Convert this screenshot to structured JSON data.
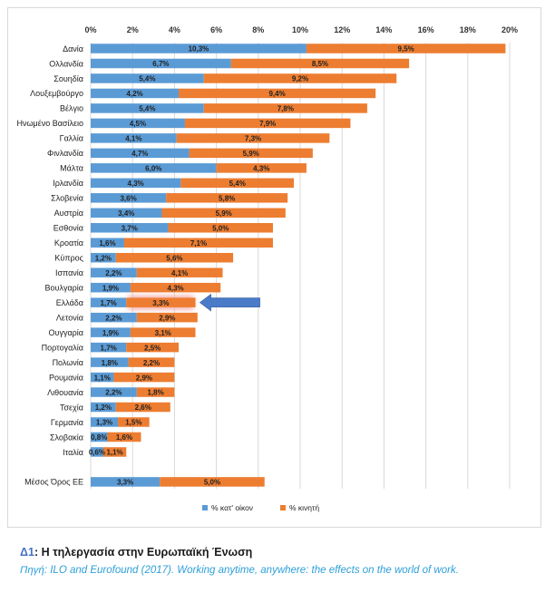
{
  "chart_data": {
    "type": "bar",
    "orientation": "horizontal",
    "stacked": true,
    "categories": [
      "Δανία",
      "Ολλανδία",
      "Σουηδία",
      "Λουξεμβούργο",
      "Βέλγιο",
      "Ηνωμένο Βασίλειο",
      "Γαλλία",
      "Φινλανδία",
      "Μάλτα",
      "Ιρλανδία",
      "Σλοβενία",
      "Αυστρία",
      "Εσθονία",
      "Κροατία",
      "Κύπρος",
      "Ισπανία",
      "Βουλγαρία",
      "Ελλάδα",
      "Λετονία",
      "Ουγγαρία",
      "Πορτογαλία",
      "Πολωνία",
      "Ρουμανία",
      "Λιθουανία",
      "Τσεχία",
      "Γερμανία",
      "Σλοβακία",
      "Ιταλία",
      "",
      "Μέσος Όρος ΕΕ"
    ],
    "series": [
      {
        "name": "% κατ' οίκον",
        "color": "#5b9bd5",
        "values": [
          10.3,
          6.7,
          5.4,
          4.2,
          5.4,
          4.5,
          4.1,
          4.7,
          6.0,
          4.3,
          3.6,
          3.4,
          3.7,
          1.6,
          1.2,
          2.2,
          1.9,
          1.7,
          2.2,
          1.9,
          1.7,
          1.8,
          1.1,
          2.2,
          1.2,
          1.3,
          0.8,
          0.6,
          null,
          3.3
        ],
        "labels": [
          "10,3%",
          "6,7%",
          "5,4%",
          "4,2%",
          "5,4%",
          "4,5%",
          "4,1%",
          "4,7%",
          "6,0%",
          "4,3%",
          "3,6%",
          "3,4%",
          "3,7%",
          "1,6%",
          "1,2%",
          "2,2%",
          "1,9%",
          "1,7%",
          "2,2%",
          "1,9%",
          "1,7%",
          "1,8%",
          "1,1%",
          "2,2%",
          "1,2%",
          "1,3%",
          "0,8%",
          "0,6%",
          "",
          "3,3%"
        ]
      },
      {
        "name": "% κινητή",
        "color": "#ed7d31",
        "values": [
          9.5,
          8.5,
          9.2,
          9.4,
          7.8,
          7.9,
          7.3,
          5.9,
          4.3,
          5.4,
          5.8,
          5.9,
          5.0,
          7.1,
          5.6,
          4.1,
          4.3,
          3.3,
          2.9,
          3.1,
          2.5,
          2.2,
          2.9,
          1.8,
          2.6,
          1.5,
          1.6,
          1.1,
          null,
          5.0
        ],
        "labels": [
          "9,5%",
          "8,5%",
          "9,2%",
          "9,4%",
          "7,8%",
          "7,9%",
          "7,3%",
          "5,9%",
          "4,3%",
          "5,4%",
          "5,8%",
          "5,9%",
          "5,0%",
          "7,1%",
          "5,6%",
          "4,1%",
          "4,3%",
          "3,3%",
          "2,9%",
          "3,1%",
          "2,5%",
          "2,2%",
          "2,9%",
          "1,8%",
          "2,6%",
          "1,5%",
          "1,6%",
          "1,1%",
          "",
          "5,0%"
        ]
      }
    ],
    "x_ticks": [
      "0%",
      "2%",
      "4%",
      "6%",
      "8%",
      "10%",
      "12%",
      "14%",
      "16%",
      "18%",
      "20%"
    ],
    "xlim": [
      0,
      20
    ],
    "axis_position": "top",
    "grid": true,
    "legend_position": "bottom-center",
    "highlight": {
      "category": "Ελλάδα",
      "arrow": "left",
      "arrow_color": "#4a7bc8",
      "glow_color": "#f4a6a0"
    }
  },
  "caption": {
    "number": "Δ1",
    "title": ": Η τηλεργασία στην Ευρωπαϊκή Ένωση"
  },
  "source": "Πηγή: ILO and Eurofound (2017). Working anytime, anywhere: the effects on the world of work."
}
